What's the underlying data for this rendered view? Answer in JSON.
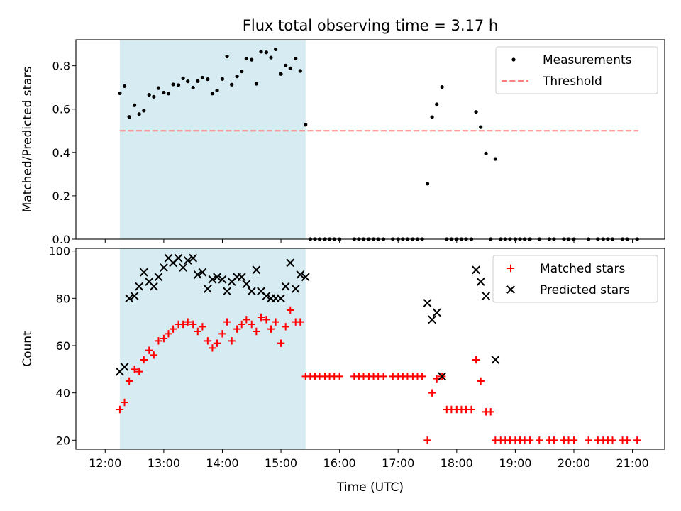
{
  "figure": {
    "title": "Flux total observing time = 3.17 h",
    "xlabel": "Time (UTC)",
    "x_ticks": [
      "12:00",
      "13:00",
      "14:00",
      "15:00",
      "16:00",
      "17:00",
      "18:00",
      "19:00",
      "20:00",
      "21:00"
    ],
    "highlight": {
      "start_hour": 12.25,
      "end_hour": 15.42,
      "color": "#add8e6"
    }
  },
  "chart_data": [
    {
      "type": "scatter",
      "panel": "top",
      "ylabel": "Matched/Predicted stars",
      "xlim": [
        11.5,
        21.55
      ],
      "ylim": [
        0,
        0.92
      ],
      "y_ticks": [
        "0.0",
        "0.2",
        "0.4",
        "0.6",
        "0.8"
      ],
      "legend_placement": "top-right",
      "series": [
        {
          "name": "Measurements",
          "kind": "points",
          "color": "#000000",
          "x": [
            12.25,
            12.33,
            12.41,
            12.5,
            12.58,
            12.66,
            12.75,
            12.83,
            12.91,
            13.0,
            13.08,
            13.16,
            13.25,
            13.33,
            13.41,
            13.5,
            13.58,
            13.66,
            13.75,
            13.83,
            13.91,
            14.0,
            14.08,
            14.16,
            14.25,
            14.33,
            14.41,
            14.5,
            14.58,
            14.66,
            14.75,
            14.83,
            14.91,
            15.0,
            15.08,
            15.16,
            15.25,
            15.33,
            15.42,
            15.5,
            15.58,
            15.66,
            15.75,
            15.83,
            15.91,
            16.0,
            16.25,
            16.33,
            16.41,
            16.5,
            16.58,
            16.66,
            16.75,
            16.91,
            17.0,
            17.08,
            17.16,
            17.25,
            17.33,
            17.41,
            17.5,
            17.58,
            17.66,
            17.75,
            17.83,
            17.91,
            18.0,
            18.08,
            18.16,
            18.25,
            18.33,
            18.41,
            18.5,
            18.58,
            18.66,
            18.75,
            18.83,
            18.91,
            19.0,
            19.08,
            19.16,
            19.25,
            19.41,
            19.58,
            19.66,
            19.83,
            19.91,
            20.0,
            20.25,
            20.41,
            20.5,
            20.58,
            20.66,
            20.83,
            20.91,
            21.08
          ],
          "y": [
            0.673,
            0.706,
            0.564,
            0.618,
            0.577,
            0.593,
            0.666,
            0.657,
            0.697,
            0.676,
            0.672,
            0.714,
            0.711,
            0.742,
            0.728,
            0.699,
            0.729,
            0.745,
            0.738,
            0.672,
            0.686,
            0.739,
            0.843,
            0.713,
            0.751,
            0.774,
            0.833,
            0.828,
            0.717,
            0.865,
            0.862,
            0.838,
            0.876,
            0.762,
            0.801,
            0.788,
            0.833,
            0.776,
            0.528,
            0.0,
            0.0,
            0.0,
            0.0,
            0.0,
            0.0,
            0.0,
            0.0,
            0.0,
            0.0,
            0.0,
            0.0,
            0.0,
            0.0,
            0.0,
            0.0,
            0.0,
            0.0,
            0.0,
            0.0,
            0.0,
            0.256,
            0.563,
            0.622,
            0.702,
            0.0,
            0.0,
            0.0,
            0.0,
            0.0,
            0.0,
            0.587,
            0.517,
            0.395,
            0.0,
            0.37,
            0.0,
            0.0,
            0.0,
            0.0,
            0.0,
            0.0,
            0.0,
            0.0,
            0.0,
            0.0,
            0.0,
            0.0,
            0.0,
            0.0,
            0.0,
            0.0,
            0.0,
            0.0,
            0.0,
            0.0,
            0.0
          ]
        },
        {
          "name": "Threshold",
          "kind": "dashed-line",
          "color": "#ff7f7f",
          "x": [
            12.25,
            21.1
          ],
          "y": [
            0.5,
            0.5
          ]
        }
      ]
    },
    {
      "type": "scatter",
      "panel": "bottom",
      "ylabel": "Count",
      "xlim": [
        11.5,
        21.55
      ],
      "ylim": [
        16.2,
        101.1
      ],
      "y_ticks": [
        "20",
        "40",
        "60",
        "80",
        "100"
      ],
      "legend_placement": "top-right",
      "series": [
        {
          "name": "Matched stars",
          "marker": "plus",
          "color": "#ff0000",
          "x": [
            12.25,
            12.33,
            12.41,
            12.5,
            12.58,
            12.66,
            12.75,
            12.83,
            12.91,
            13.0,
            13.08,
            13.16,
            13.25,
            13.33,
            13.41,
            13.5,
            13.58,
            13.66,
            13.75,
            13.83,
            13.91,
            14.0,
            14.08,
            14.16,
            14.25,
            14.33,
            14.41,
            14.5,
            14.58,
            14.66,
            14.75,
            14.83,
            14.91,
            15.0,
            15.08,
            15.16,
            15.25,
            15.33,
            15.42,
            15.5,
            15.58,
            15.66,
            15.75,
            15.83,
            15.91,
            16.0,
            16.25,
            16.33,
            16.41,
            16.5,
            16.58,
            16.66,
            16.75,
            16.91,
            17.0,
            17.08,
            17.16,
            17.25,
            17.33,
            17.41,
            17.5,
            17.58,
            17.66,
            17.75,
            17.83,
            17.91,
            18.0,
            18.08,
            18.16,
            18.25,
            18.33,
            18.41,
            18.5,
            18.58,
            18.66,
            18.75,
            18.83,
            18.91,
            19.0,
            19.08,
            19.16,
            19.25,
            19.41,
            19.58,
            19.66,
            19.83,
            19.91,
            20.0,
            20.25,
            20.41,
            20.5,
            20.58,
            20.66,
            20.83,
            20.91,
            21.08
          ],
          "y": [
            33,
            36,
            45,
            50,
            49,
            54,
            58,
            56,
            62,
            63,
            65,
            67,
            69,
            69,
            70,
            69,
            66,
            68,
            62,
            59,
            61,
            65,
            70,
            62,
            67,
            69,
            71,
            69,
            66,
            72,
            71,
            67,
            70,
            61,
            68,
            75,
            70,
            70,
            47,
            47,
            47,
            47,
            47,
            47,
            47,
            47,
            47,
            47,
            47,
            47,
            47,
            47,
            47,
            47,
            47,
            47,
            47,
            47,
            47,
            47,
            20,
            40,
            46,
            47,
            33,
            33,
            33,
            33,
            33,
            33,
            54,
            45,
            32,
            32,
            20,
            20,
            20,
            20,
            20,
            20,
            20,
            20,
            20,
            20,
            20,
            20,
            20,
            20,
            20,
            20,
            20,
            20,
            20,
            20,
            20,
            20
          ]
        },
        {
          "name": "Predicted stars",
          "marker": "x",
          "color": "#000000",
          "x": [
            12.25,
            12.33,
            12.41,
            12.5,
            12.58,
            12.66,
            12.75,
            12.83,
            12.91,
            13.0,
            13.08,
            13.16,
            13.25,
            13.33,
            13.41,
            13.5,
            13.58,
            13.66,
            13.75,
            13.83,
            13.91,
            14.0,
            14.08,
            14.16,
            14.25,
            14.33,
            14.41,
            14.5,
            14.58,
            14.66,
            14.75,
            14.83,
            14.91,
            15.0,
            15.08,
            15.16,
            15.25,
            15.33,
            15.42,
            17.5,
            17.58,
            17.66,
            17.75,
            18.33,
            18.41,
            18.5,
            18.66
          ],
          "y": [
            49,
            51,
            80,
            81,
            85,
            91,
            87,
            85,
            89,
            93,
            97,
            95,
            97,
            93,
            96,
            97,
            90,
            91,
            84,
            88,
            89,
            88,
            83,
            87,
            89,
            89,
            86,
            83,
            92,
            83,
            81,
            80,
            80,
            80,
            85,
            95,
            84,
            90,
            89,
            78,
            71,
            74,
            47,
            92,
            87,
            81,
            54
          ]
        }
      ]
    }
  ]
}
